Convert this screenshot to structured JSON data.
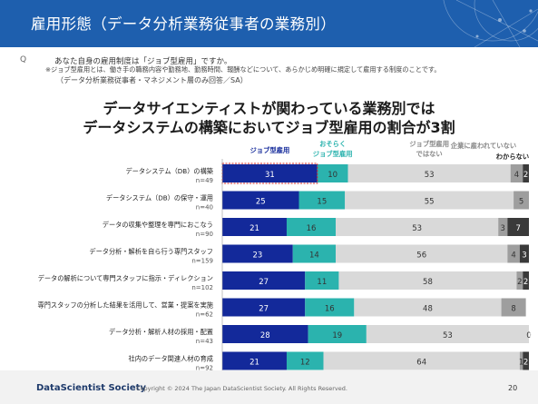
{
  "header": {
    "title": "雇用形態（データ分析業務従事者の業務別）"
  },
  "survey": {
    "q_mark": "Q",
    "question": "あなた自身の雇用制度は「ジョブ型雇用」ですか。",
    "note": "※ジョブ型雇用とは、働き手の職務内容や勤務地、勤務時間、報酬などについて、あらかじめ明確に規定して雇用する制度のことです。",
    "sub": "（データ分析業務従事者・マネジメント層のみ回答／SA）"
  },
  "headline": {
    "line1": "データサイエンティストが関わっている業務別では",
    "line2": "データシステムの構築においてジョブ型雇用の割合が3割"
  },
  "chart_data": {
    "type": "bar",
    "orientation": "horizontal",
    "stacked": true,
    "categories": [
      "データシステム（DB）の構築",
      "データシステム（DB）の保守・運用",
      "データの収集や整理を専門におこなう",
      "データ分析・解析を自ら行う専門スタッフ",
      "データの解析について専門スタッフに指示・ディレクション",
      "専門スタッフの分析した結果を活用して、営業・提案を実施",
      "データ分析・解析人材の採用・配置",
      "社内のデータ関連人材の育成"
    ],
    "n_labels": [
      "n=49",
      "n=40",
      "n=90",
      "n=159",
      "n=102",
      "n=62",
      "n=43",
      "n=92"
    ],
    "series": [
      {
        "name": "ジョブ型雇用",
        "values": [
          31,
          25,
          21,
          23,
          27,
          27,
          28,
          21
        ]
      },
      {
        "name": "おそらくジョブ型雇用",
        "values": [
          10,
          15,
          16,
          14,
          11,
          16,
          19,
          12
        ]
      },
      {
        "name": "ジョブ型雇用ではない",
        "values": [
          53,
          55,
          53,
          56,
          58,
          48,
          53,
          64
        ]
      },
      {
        "name": "企業に雇われていない",
        "values": [
          4,
          5,
          3,
          4,
          2,
          8,
          0,
          1
        ]
      },
      {
        "name": "わからない",
        "values": [
          2,
          0,
          7,
          3,
          2,
          0,
          0,
          2
        ]
      }
    ],
    "legend_lines": [
      [
        "ジョブ型雇用"
      ],
      [
        "おそらく",
        "ジョブ型雇用"
      ],
      [
        "ジョブ型雇用",
        "ではない"
      ],
      [
        "企業に雇われていない"
      ],
      [
        "わからない"
      ]
    ],
    "xlim": [
      0,
      100
    ],
    "grid": false,
    "legend": "top"
  },
  "colors": {
    "header": "#1e5fae",
    "s1": "#13299a",
    "s2": "#2bb3ae",
    "s3": "#d9d9d9",
    "s4": "#9e9e9e",
    "s5": "#3a3a3a",
    "label_dark": "#333333",
    "label_light": "#ffffff"
  },
  "footer": {
    "brand": "DataScientist Society",
    "copyright": "Copyright © 2024 The Japan DataScientist Society. All Rights Reserved.",
    "page": "20"
  }
}
